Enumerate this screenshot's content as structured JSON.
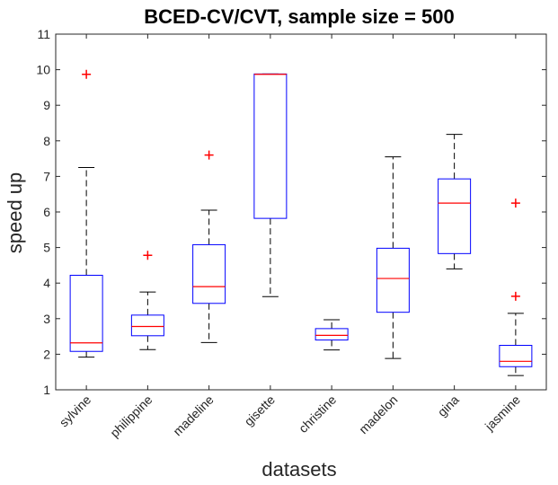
{
  "chart_data": {
    "type": "box",
    "title": "BCED-CV/CVT, sample size = 500",
    "xlabel": "datasets",
    "ylabel": "speed up",
    "ylim": [
      1,
      11
    ],
    "yticks": [
      1,
      2,
      3,
      4,
      5,
      6,
      7,
      8,
      9,
      10,
      11
    ],
    "grid": false,
    "colors": {
      "box": "#0000ff",
      "median": "#ff0000",
      "whisker": "#000000",
      "outlier": "#ff0000",
      "axis": "#262626"
    },
    "categories": [
      "sylvine",
      "philippine",
      "madeline",
      "gisette",
      "christine",
      "madelon",
      "gina",
      "jasmine"
    ],
    "boxes": [
      {
        "name": "sylvine",
        "whisker_low": 1.92,
        "q1": 2.08,
        "median": 2.32,
        "q3": 4.22,
        "whisker_high": 7.25,
        "outliers": [
          9.87
        ]
      },
      {
        "name": "philippine",
        "whisker_low": 2.13,
        "q1": 2.52,
        "median": 2.78,
        "q3": 3.1,
        "whisker_high": 3.75,
        "outliers": [
          4.78
        ]
      },
      {
        "name": "madeline",
        "whisker_low": 2.33,
        "q1": 3.43,
        "median": 3.9,
        "q3": 5.08,
        "whisker_high": 6.05,
        "outliers": [
          7.6
        ]
      },
      {
        "name": "gisette",
        "whisker_low": 3.62,
        "q1": 5.82,
        "median": 9.87,
        "q3": 9.88,
        "whisker_high": 9.88,
        "outliers": []
      },
      {
        "name": "christine",
        "whisker_low": 2.12,
        "q1": 2.4,
        "median": 2.53,
        "q3": 2.72,
        "whisker_high": 2.97,
        "outliers": []
      },
      {
        "name": "madelon",
        "whisker_low": 1.88,
        "q1": 3.18,
        "median": 4.13,
        "q3": 4.98,
        "whisker_high": 7.55,
        "outliers": []
      },
      {
        "name": "gina",
        "whisker_low": 4.4,
        "q1": 4.83,
        "median": 6.25,
        "q3": 6.93,
        "whisker_high": 8.18,
        "outliers": []
      },
      {
        "name": "jasmine",
        "whisker_low": 1.4,
        "q1": 1.65,
        "median": 1.8,
        "q3": 2.25,
        "whisker_high": 3.15,
        "outliers": [
          3.63,
          6.25
        ]
      }
    ]
  }
}
